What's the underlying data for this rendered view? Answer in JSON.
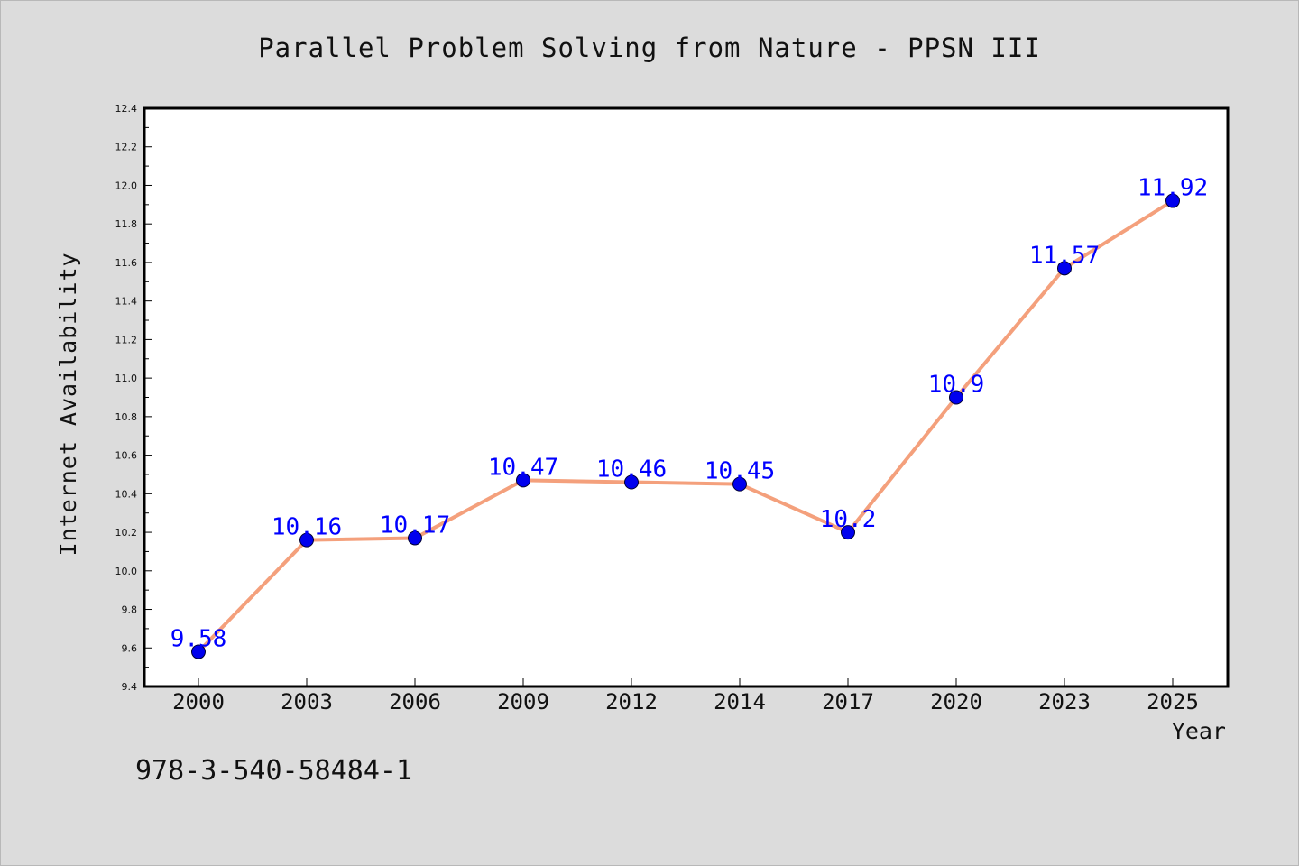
{
  "note": "978-3-540-58484-1",
  "colors": {
    "background": "#dcdcdc",
    "plot_background": "#ffffff",
    "line": "#f4a07c",
    "marker": "#0000ee",
    "data_label": "#0000ff",
    "axis": "#000000"
  },
  "chart_data": {
    "type": "line",
    "title": "Parallel Problem Solving from Nature - PPSN III",
    "xlabel": "Year",
    "ylabel": "Internet Availability",
    "categories": [
      "2000",
      "2003",
      "2006",
      "2009",
      "2012",
      "2014",
      "2017",
      "2020",
      "2023",
      "2025"
    ],
    "series": [
      {
        "values": [
          9.58,
          10.16,
          10.17,
          10.47,
          10.46,
          10.45,
          10.2,
          10.9,
          11.57,
          11.92
        ],
        "labels": [
          "9.58",
          "10.16",
          "10.17",
          "10.47",
          "10.46",
          "10.45",
          "10.2",
          "10.9",
          "11.57",
          "11.92"
        ]
      }
    ],
    "ylim": [
      9.4,
      12.4
    ],
    "yticks": [
      "9.4",
      "9.6",
      "9.8",
      "10.0",
      "10.2",
      "10.4",
      "10.6",
      "10.8",
      "11.0",
      "11.2",
      "11.4",
      "11.6",
      "11.8",
      "12.0",
      "12.2",
      "12.4"
    ],
    "grid": false,
    "legend": "none"
  }
}
